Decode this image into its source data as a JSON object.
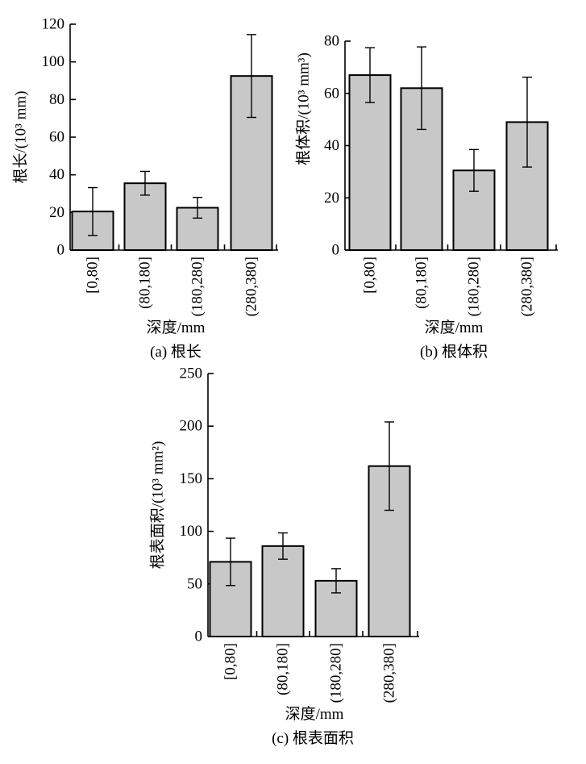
{
  "chart_data": [
    {
      "type": "bar",
      "caption": "(a) 根长",
      "xlabel": "深度/mm",
      "ylabel": "根长/(10³ mm)",
      "categories": [
        "[0,80]",
        "(80,180]",
        "(180,280]",
        "(280,380]"
      ],
      "values": [
        20.5,
        35.5,
        22.5,
        92.5
      ],
      "error": [
        12.7,
        6.3,
        5.5,
        22
      ],
      "ylim": [
        0,
        120
      ],
      "yticks": [
        0,
        20,
        40,
        60,
        80,
        100,
        120
      ],
      "grid": false,
      "bar_color": "#c8c8c8"
    },
    {
      "type": "bar",
      "caption": "(b) 根体积",
      "xlabel": "深度/mm",
      "ylabel": "根体积/(10³ mm³)",
      "categories": [
        "[0,80]",
        "(80,180]",
        "(180,280]",
        "(280,380]"
      ],
      "values": [
        67,
        62,
        30.5,
        49
      ],
      "error": [
        10.5,
        15.8,
        8,
        17.2
      ],
      "ylim": [
        0,
        80
      ],
      "yticks": [
        0,
        20,
        40,
        60,
        80
      ],
      "grid": false,
      "bar_color": "#c8c8c8"
    },
    {
      "type": "bar",
      "caption": "(c) 根表面积",
      "xlabel": "深度/mm",
      "ylabel": "根表面积/(10³ mm²)",
      "categories": [
        "[0,80]",
        "(80,180]",
        "(180,280]",
        "(280,380]"
      ],
      "values": [
        71,
        86,
        53,
        162
      ],
      "error": [
        22.5,
        12.5,
        11.5,
        42
      ],
      "ylim": [
        0,
        250
      ],
      "yticks": [
        0,
        50,
        100,
        150,
        200,
        250
      ],
      "grid": false,
      "bar_color": "#c8c8c8"
    }
  ]
}
